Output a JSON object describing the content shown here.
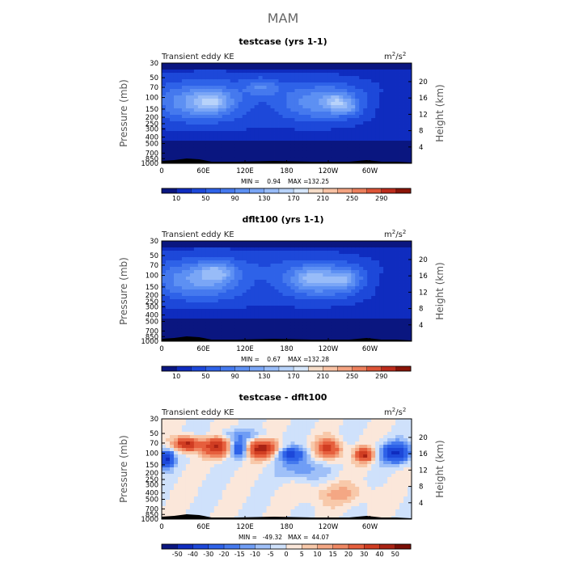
{
  "figure_title": "MAM",
  "panel_left_label": "Transient eddy KE",
  "units": {
    "base": "m",
    "sup1": "2",
    "sep": "/s",
    "sup2": "2"
  },
  "y_left_label": "Pressure (mb)",
  "y_right_label": "Height (km)",
  "pressure_ticks": [
    "30",
    "50",
    "70",
    "100",
    "150",
    "200",
    "250",
    "300",
    "400",
    "500",
    "700",
    "850",
    "1000"
  ],
  "height_ticks": [
    "20",
    "16",
    "12",
    "8",
    "4"
  ],
  "x_ticks": [
    "0",
    "60E",
    "120E",
    "180",
    "120W",
    "60W"
  ],
  "chart_data": [
    {
      "type": "heatmap",
      "title": "testcase (yrs 1-1)",
      "stats": {
        "min_label": "MIN =",
        "min": "0.94",
        "max_label": "MAX =",
        "max": "132.25"
      },
      "colorbar": {
        "levels": [
          0,
          10,
          30,
          50,
          70,
          90,
          110,
          130,
          150,
          170,
          190,
          210,
          230,
          250,
          270,
          290,
          310
        ],
        "labels": [
          "10",
          "50",
          "90",
          "130",
          "170",
          "210",
          "250",
          "290"
        ],
        "colors": [
          "#0a1680",
          "#0f2cbf",
          "#1d48d9",
          "#2e62e8",
          "#4579ee",
          "#5d90f3",
          "#7aa6f6",
          "#98bcf8",
          "#b8d3fa",
          "#d6e6fb",
          "#f5dcc8",
          "#f8c2a4",
          "#f4a381",
          "#ec7f5c",
          "#dc5437",
          "#bc2c1c",
          "#8a1408"
        ]
      },
      "zlim": [
        0,
        310
      ]
    },
    {
      "type": "heatmap",
      "title": "dflt100 (yrs 1-1)",
      "stats": {
        "min_label": "MIN =",
        "min": "0.67",
        "max_label": "MAX =",
        "max": "132.28"
      },
      "colorbar": {
        "levels": [
          0,
          10,
          30,
          50,
          70,
          90,
          110,
          130,
          150,
          170,
          190,
          210,
          230,
          250,
          270,
          290,
          310
        ],
        "labels": [
          "10",
          "50",
          "90",
          "130",
          "170",
          "210",
          "250",
          "290"
        ],
        "colors": [
          "#0a1680",
          "#0f2cbf",
          "#1d48d9",
          "#2e62e8",
          "#4579ee",
          "#5d90f3",
          "#7aa6f6",
          "#98bcf8",
          "#b8d3fa",
          "#d6e6fb",
          "#f5dcc8",
          "#f8c2a4",
          "#f4a381",
          "#ec7f5c",
          "#dc5437",
          "#bc2c1c",
          "#8a1408"
        ]
      },
      "zlim": [
        0,
        310
      ]
    },
    {
      "type": "heatmap",
      "title": "testcase - dflt100",
      "stats": {
        "min_label": "MIN =",
        "min": "-49.32",
        "max_label": "MAX =",
        "max": "44.07"
      },
      "colorbar": {
        "levels": [
          -60,
          -50,
          -40,
          -30,
          -20,
          -15,
          -10,
          -5,
          0,
          5,
          10,
          15,
          20,
          30,
          40,
          50,
          60
        ],
        "labels": [
          "-50",
          "-40",
          "-30",
          "-20",
          "-15",
          "-10",
          "-5",
          "0",
          "5",
          "10",
          "15",
          "20",
          "30",
          "40",
          "50"
        ],
        "colors": [
          "#0a1680",
          "#0f2cbf",
          "#1d48d9",
          "#2e62e8",
          "#4579ee",
          "#6f9df5",
          "#9fc0f8",
          "#cfe1fb",
          "#fbe7da",
          "#f8c9aa",
          "#f4a784",
          "#ef8762",
          "#e65f3d",
          "#d03d22",
          "#aa2314",
          "#7a0e06"
        ]
      },
      "zlim": [
        -60,
        60
      ]
    }
  ]
}
